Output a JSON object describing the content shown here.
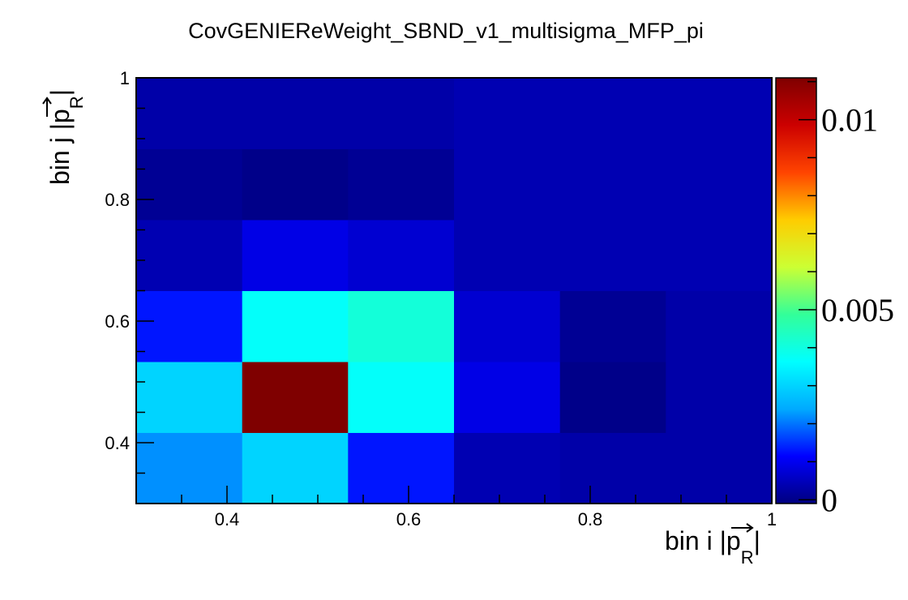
{
  "chart_data": {
    "type": "heatmap",
    "title": "CovGENIEReWeight_SBND_v1_multisigma_MFP_pi",
    "xlabel": {
      "prefix": "bin i |",
      "var": "p",
      "sub": "R",
      "suffix": "|"
    },
    "ylabel": {
      "prefix": "bin j |",
      "var": "p",
      "sub": "R",
      "suffix": "|"
    },
    "xlim": [
      0.3,
      1.0
    ],
    "ylim": [
      0.3,
      1.0
    ],
    "x_edges": [
      0.3,
      0.4167,
      0.5333,
      0.65,
      0.7667,
      0.8833,
      1.0
    ],
    "y_edges": [
      0.3,
      0.4167,
      0.5333,
      0.65,
      0.7667,
      0.8833,
      1.0
    ],
    "x_ticks": [
      0.4,
      0.6,
      0.8,
      1
    ],
    "x_tick_labels": [
      "0.4",
      "0.6",
      "0.8",
      "1"
    ],
    "y_ticks": [
      0.4,
      0.6,
      0.8,
      1
    ],
    "y_tick_labels": [
      "0.4",
      "0.6",
      "0.8",
      "1"
    ],
    "z_range": [
      -0.0001,
      0.0111
    ],
    "colorbar_ticks": [
      0,
      0.005,
      0.01
    ],
    "colorbar_tick_labels": [
      "0",
      "0.005",
      "0.01"
    ],
    "values": [
      [
        0.0022,
        0.003,
        0.0013,
        0.0004,
        0.0001,
        0.0003
      ],
      [
        0.003,
        0.0111,
        0.0037,
        0.0009,
        0.0,
        0.0003
      ],
      [
        0.0013,
        0.0037,
        0.0041,
        0.0007,
        0.0001,
        0.0003
      ],
      [
        0.0004,
        0.0009,
        0.0007,
        0.0004,
        0.0004,
        0.0004
      ],
      [
        0.0003,
        0.0,
        0.0001,
        0.0004,
        0.0004,
        0.0004
      ],
      [
        0.0003,
        0.0003,
        0.0003,
        0.0004,
        0.0004,
        0.0004
      ]
    ],
    "colormap": [
      "#00007f",
      "#0000ff",
      "#00aaff",
      "#00ffff",
      "#33ff99",
      "#ccff33",
      "#ffcc00",
      "#ff4400",
      "#cc0000",
      "#7f0000"
    ]
  }
}
